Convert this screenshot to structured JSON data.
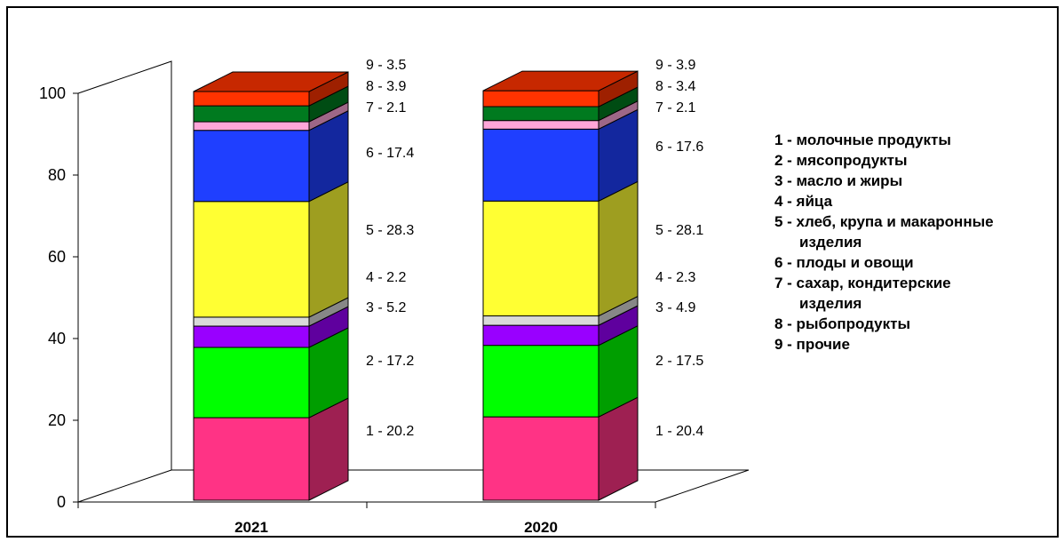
{
  "chart_data": {
    "type": "bar",
    "stacked": true,
    "three_d": true,
    "categories": [
      "2021",
      "2020"
    ],
    "yticks": [
      "0",
      "20",
      "40",
      "60",
      "80",
      "100"
    ],
    "ylim": [
      0,
      100
    ],
    "series": [
      {
        "code": "1",
        "values": [
          20.2,
          20.4
        ],
        "color": "#FF3385"
      },
      {
        "code": "2",
        "values": [
          17.2,
          17.5
        ],
        "color": "#00FF00"
      },
      {
        "code": "3",
        "values": [
          5.2,
          4.9
        ],
        "color": "#9900FF"
      },
      {
        "code": "4",
        "values": [
          2.2,
          2.3
        ],
        "color": "#D9D9D9"
      },
      {
        "code": "5",
        "values": [
          28.3,
          28.1
        ],
        "color": "#FFFF33"
      },
      {
        "code": "6",
        "values": [
          17.4,
          17.6
        ],
        "color": "#1F3FFF"
      },
      {
        "code": "7",
        "values": [
          2.1,
          2.1
        ],
        "color": "#FFA6D9"
      },
      {
        "code": "8",
        "values": [
          3.9,
          3.4
        ],
        "color": "#007A1F"
      },
      {
        "code": "9",
        "values": [
          3.5,
          3.9
        ],
        "color": "#FF3300"
      }
    ],
    "data_labels": [
      [
        "1 - 20.2",
        "2 - 17.2",
        "3 - 5.2",
        "4 - 2.2",
        "5 - 28.3",
        "6 - 17.4",
        "7 - 2.1",
        "8 - 3.9",
        "9 - 3.5"
      ],
      [
        "1 - 20.4",
        "2 - 17.5",
        "3 - 4.9",
        "4 - 2.3",
        "5 - 28.1",
        "6 - 17.6",
        "7 - 2.1",
        "8 - 3.4",
        "9 - 3.9"
      ]
    ],
    "legend_placement": "right",
    "legend": [
      [
        "1 - молочные  продукты"
      ],
      [
        "2 - мясопродукты"
      ],
      [
        "3 - масло и жиры"
      ],
      [
        "4 - яйца"
      ],
      [
        "5 - хлеб, крупа и макаронные",
        "изделия"
      ],
      [
        "6 - плоды и  овощи"
      ],
      [
        "7 - сахар, кондитерские",
        "изделия"
      ],
      [
        "8 - рыбопродукты"
      ],
      [
        "9 - прочие"
      ]
    ],
    "grid": false
  }
}
